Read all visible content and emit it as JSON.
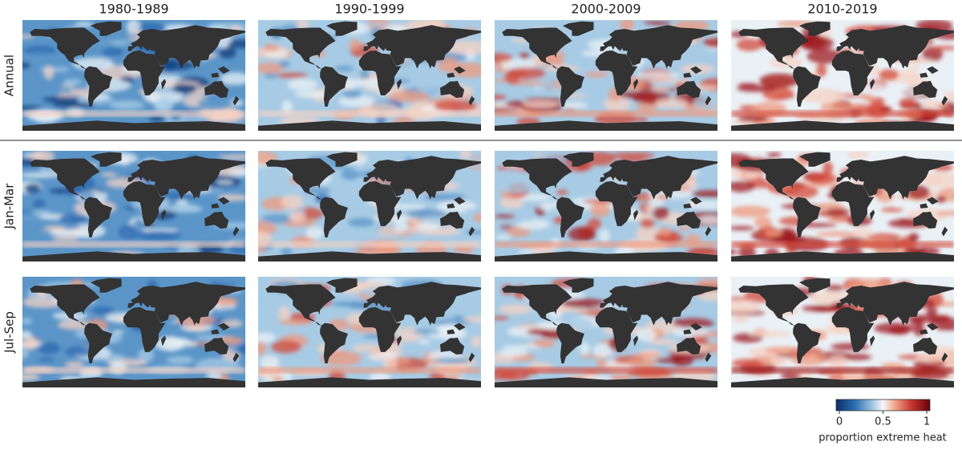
{
  "columns": [
    "1980-1989",
    "1990-1999",
    "2000-2009",
    "2010-2019"
  ],
  "rows": [
    "Annual",
    "Jan-Mar",
    "Jul-Sep"
  ],
  "colorbar": {
    "label": "proportion extreme heat",
    "lim": [
      0,
      1
    ],
    "ticks": [
      0,
      0.5,
      1
    ]
  }
}
